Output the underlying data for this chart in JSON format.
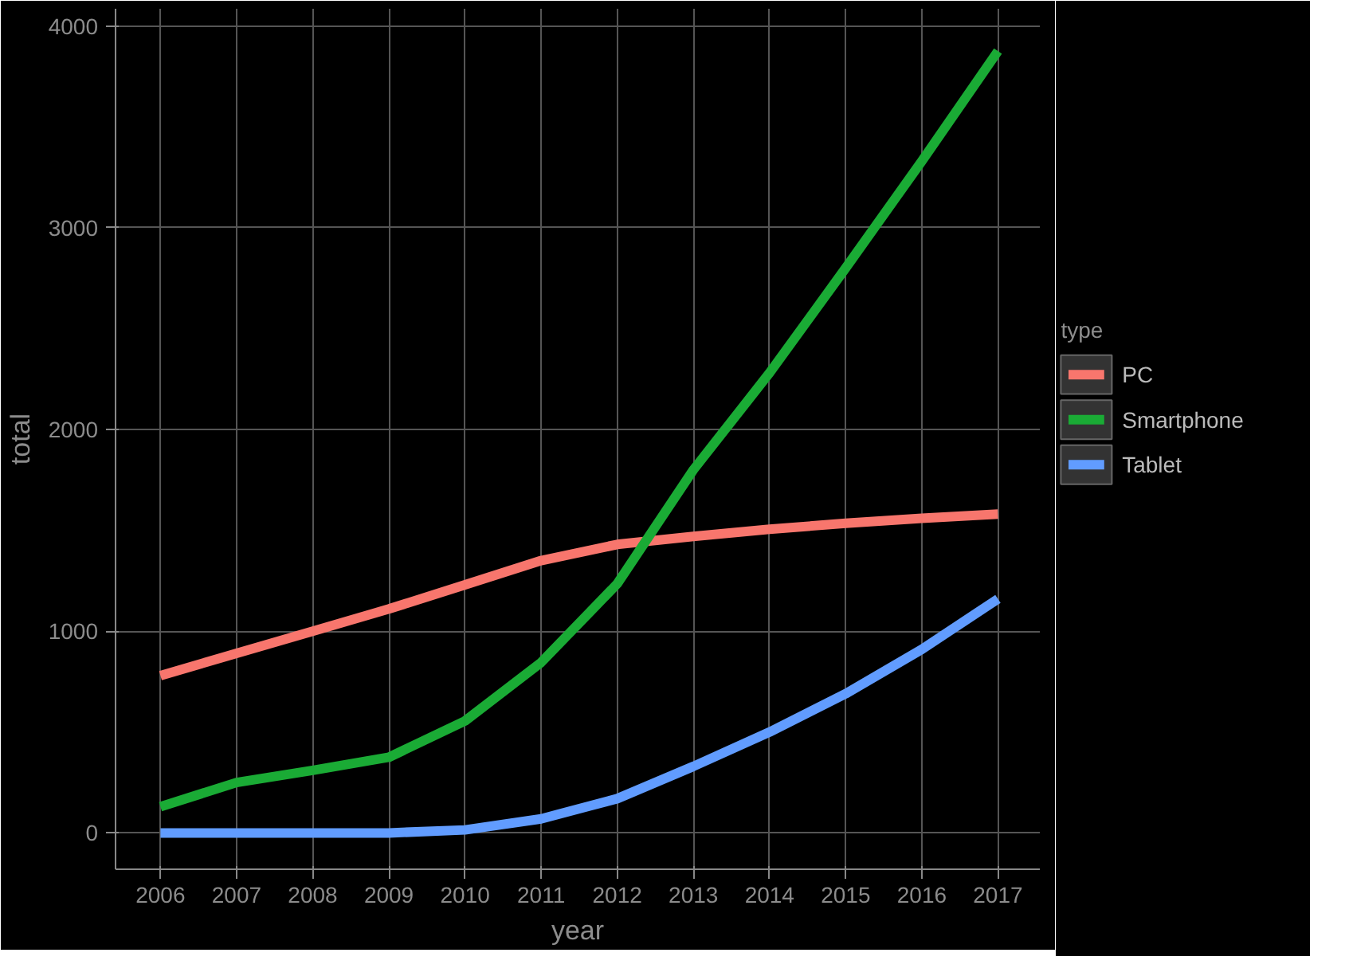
{
  "chart_data": {
    "type": "line",
    "xlabel": "year",
    "ylabel": "total",
    "legend_title": "type",
    "legend": "right",
    "grid": true,
    "line_style": "solid",
    "marker": "none",
    "x": [
      2006,
      2007,
      2008,
      2009,
      2010,
      2011,
      2012,
      2013,
      2014,
      2015,
      2016,
      2017
    ],
    "xlim": [
      2005.41,
      2017.55
    ],
    "xticks": [
      2006,
      2007,
      2008,
      2009,
      2010,
      2011,
      2012,
      2013,
      2014,
      2015,
      2016,
      2017
    ],
    "ylim": [
      -180,
      4085
    ],
    "yticks": [
      0,
      1000,
      2000,
      3000,
      4000
    ],
    "series": [
      {
        "name": "PC",
        "color": "#f8766d",
        "values": [
          780,
          890,
          1000,
          1110,
          1230,
          1350,
          1430,
          1470,
          1505,
          1535,
          1560,
          1580
        ]
      },
      {
        "name": "Smartphone",
        "color": "#1aab35",
        "values": [
          130,
          250,
          310,
          375,
          555,
          845,
          1235,
          1800,
          2280,
          2800,
          3330,
          3875
        ]
      },
      {
        "name": "Tablet",
        "color": "#619cff",
        "values": [
          0,
          0,
          0,
          0,
          15,
          70,
          170,
          330,
          500,
          690,
          910,
          1160
        ]
      }
    ]
  }
}
